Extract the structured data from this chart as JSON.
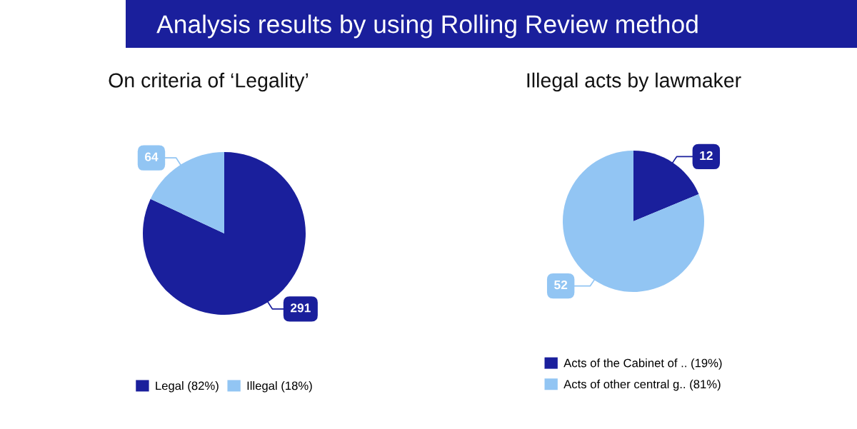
{
  "chart_data": [
    {
      "type": "pie",
      "title": "On criteria of ‘Legality’",
      "categories": [
        "Legal (82%)",
        "Illegal (18%)"
      ],
      "values": [
        291,
        64
      ],
      "colors": [
        "#1a1f9c",
        "#92c5f3"
      ],
      "data_labels": true,
      "legend": "bottom",
      "annotations": [
        "Analysis results by using Rolling Review method"
      ]
    },
    {
      "type": "pie",
      "title": "Illegal acts by lawmaker",
      "categories": [
        "Acts of the Cabinet of .. (19%)",
        "Acts of other central g.. (81%)"
      ],
      "values": [
        12,
        52
      ],
      "colors": [
        "#1a1f9c",
        "#92c5f3"
      ],
      "data_labels": true,
      "legend": "bottom"
    }
  ]
}
